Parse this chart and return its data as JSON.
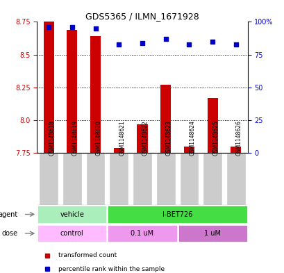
{
  "title": "GDS5365 / ILMN_1671928",
  "samples": [
    "GSM1148618",
    "GSM1148619",
    "GSM1148620",
    "GSM1148621",
    "GSM1148622",
    "GSM1148623",
    "GSM1148624",
    "GSM1148625",
    "GSM1148626"
  ],
  "bar_values": [
    8.75,
    8.69,
    8.64,
    7.79,
    7.97,
    8.27,
    7.8,
    8.17,
    7.8
  ],
  "bar_bottom": 7.75,
  "blue_dot_values": [
    96,
    96,
    95,
    83,
    84,
    87,
    83,
    85,
    83
  ],
  "ylim_left": [
    7.75,
    8.75
  ],
  "ylim_right": [
    0,
    100
  ],
  "yticks_left": [
    7.75,
    8.0,
    8.25,
    8.5,
    8.75
  ],
  "yticks_right": [
    0,
    25,
    50,
    75,
    100
  ],
  "ytick_labels_right": [
    "0",
    "25",
    "50",
    "75",
    "100%"
  ],
  "bar_color": "#cc0000",
  "dot_color": "#0000cc",
  "agent_groups": [
    {
      "label": "vehicle",
      "start": 0,
      "end": 3,
      "color": "#aaeebb"
    },
    {
      "label": "I-BET726",
      "start": 3,
      "end": 9,
      "color": "#44dd44"
    }
  ],
  "dose_groups": [
    {
      "label": "control",
      "start": 0,
      "end": 3,
      "color": "#ffbbff"
    },
    {
      "label": "0.1 uM",
      "start": 3,
      "end": 6,
      "color": "#ee99ee"
    },
    {
      "label": "1 uM",
      "start": 6,
      "end": 9,
      "color": "#cc77cc"
    }
  ],
  "legend_items": [
    {
      "color": "#cc0000",
      "label": "transformed count"
    },
    {
      "color": "#0000cc",
      "label": "percentile rank within the sample"
    }
  ],
  "tick_label_color_left": "#cc0000",
  "tick_label_color_right": "#0000cc",
  "sample_box_color": "#cccccc",
  "gridline_yticks": [
    8.0,
    8.25,
    8.5
  ]
}
